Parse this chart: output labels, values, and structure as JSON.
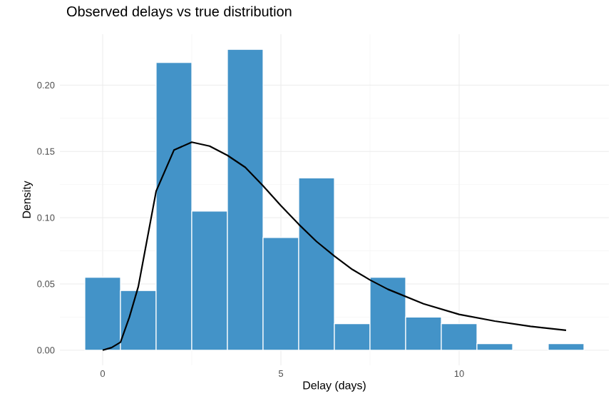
{
  "chart_data": {
    "type": "histogram",
    "title": "Observed delays vs true distribution",
    "xlabel": "Delay (days)",
    "ylabel": "Density",
    "xlim": [
      -1.2,
      14.2
    ],
    "ylim": [
      -0.0114,
      0.2384
    ],
    "xticks": [
      0,
      5,
      10
    ],
    "yticks": [
      {
        "value": 0,
        "label": "0.00"
      },
      {
        "value": 0.05,
        "label": "0.05"
      },
      {
        "value": 0.1,
        "label": "0.10"
      },
      {
        "value": 0.15,
        "label": "0.15"
      },
      {
        "value": 0.2,
        "label": "0.20"
      }
    ],
    "grid": true,
    "series": [
      {
        "color": "#4393c8",
        "bins": [
          -0.5,
          0.5,
          1.5,
          2.5,
          3.5,
          4.5,
          5.5,
          6.5,
          7.5,
          8.5,
          9.5,
          10.5,
          11.5,
          12.5,
          13.5
        ],
        "values": [
          0.055,
          0.045,
          0.217,
          0.105,
          0.227,
          0.085,
          0.13,
          0.02,
          0.055,
          0.025,
          0.02,
          0.005,
          0,
          0.005
        ]
      },
      {
        "type": "line",
        "color": "#000000",
        "x": [
          0,
          0.25,
          0.5,
          0.75,
          1,
          1.5,
          2,
          2.5,
          3,
          3.5,
          4,
          4.5,
          5,
          5.5,
          6,
          6.5,
          7,
          7.5,
          8,
          9,
          10,
          11,
          12,
          13
        ],
        "values": [
          0,
          0.002,
          0.006,
          0.025,
          0.048,
          0.12,
          0.151,
          0.157,
          0.154,
          0.147,
          0.138,
          0.124,
          0.109,
          0.095,
          0.082,
          0.071,
          0.061,
          0.053,
          0.046,
          0.035,
          0.027,
          0.022,
          0.018,
          0.015
        ]
      }
    ]
  }
}
